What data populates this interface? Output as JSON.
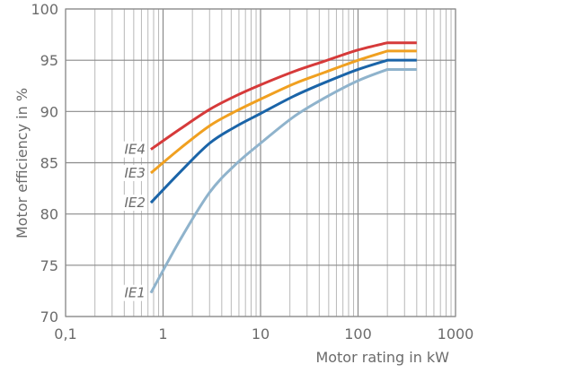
{
  "chart_data": {
    "type": "line",
    "title": "",
    "xlabel": "Motor rating in kW",
    "ylabel": "Motor efficiency in %",
    "xscale": "log",
    "xlim": [
      0.1,
      1000
    ],
    "ylim": [
      70,
      100
    ],
    "grid": true,
    "x_ticks": [
      "0,1",
      "1",
      "10",
      "100",
      "1000"
    ],
    "y_ticks": [
      "70",
      "75",
      "80",
      "85",
      "90",
      "95",
      "100"
    ],
    "legend_position": "inline-left",
    "x": [
      0.75,
      1.5,
      3,
      5.5,
      10,
      22,
      45,
      100,
      200,
      400
    ],
    "series": [
      {
        "name": "IE4",
        "color": "#d63a3a",
        "values": [
          86.3,
          88.3,
          90.2,
          91.5,
          92.6,
          93.9,
          94.9,
          96.0,
          96.7,
          96.7
        ]
      },
      {
        "name": "IE3",
        "color": "#f0a020",
        "values": [
          84.0,
          86.4,
          88.6,
          90.0,
          91.2,
          92.7,
          93.8,
          95.0,
          95.9,
          95.9
        ]
      },
      {
        "name": "IE2",
        "color": "#1a64a8",
        "values": [
          81.1,
          84.1,
          86.9,
          88.5,
          89.8,
          91.5,
          92.8,
          94.1,
          95.0,
          95.0
        ]
      },
      {
        "name": "IE1",
        "color": "#8fb3cc",
        "values": [
          72.3,
          77.5,
          82.1,
          84.8,
          86.9,
          89.5,
          91.3,
          93.0,
          94.1,
          94.1
        ]
      }
    ]
  }
}
